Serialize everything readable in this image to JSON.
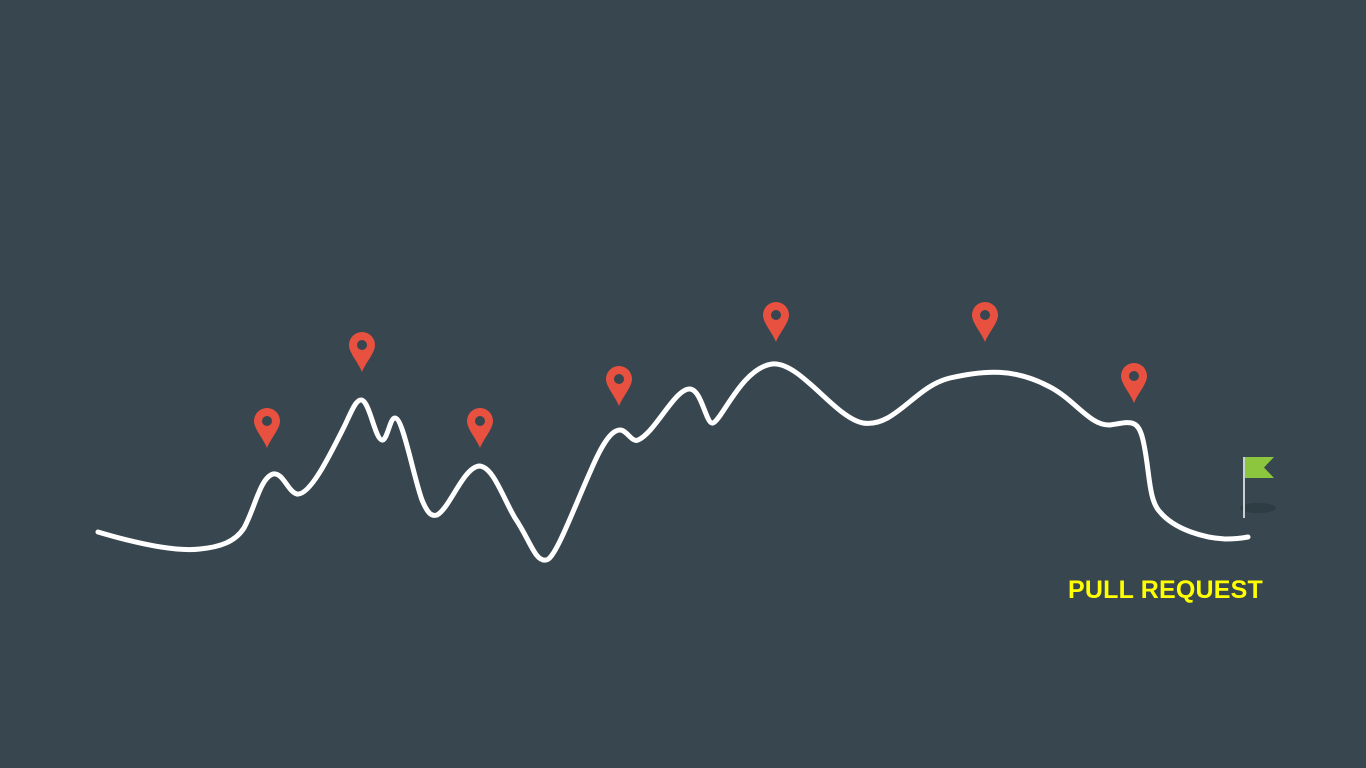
{
  "background_color": "#37464f",
  "path_color": "#ffffff",
  "marker_color": "#e8503f",
  "marker_icon": "map-pin-icon",
  "marker_count": 7,
  "goal": {
    "icon": "flag-icon",
    "flag_color": "#8cc63f",
    "label": "PULL REQUEST",
    "label_color": "#ffff00"
  }
}
